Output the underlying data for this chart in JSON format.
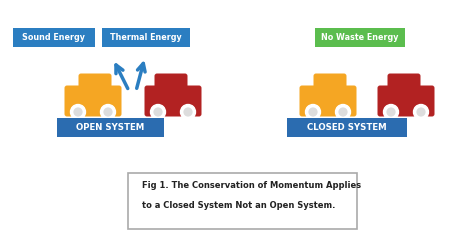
{
  "bg_color": "#ffffff",
  "car_yellow": "#F5A623",
  "car_red": "#B22222",
  "wheel_color": "#ffffff",
  "wheel_inner_color": "#dddddd",
  "arrow_color": "#2B7EC1",
  "label_bg_blue": "#2B6CB0",
  "label_bg_green": "#5BBD4E",
  "label_text_color": "#ffffff",
  "open_label": "OPEN SYSTEM",
  "closed_label": "CLOSED SYSTEM",
  "sound_label": "Sound Energy",
  "thermal_label": "Thermal Energy",
  "no_waste_label": "No Waste Energy",
  "fig_text_line1": "Fig 1. The Conservation of Momentum Applies",
  "fig_text_line2": "to a Closed System Not an Open System.",
  "fig_box_edge": "#aaaaaa",
  "fig_text_color": "#222222"
}
